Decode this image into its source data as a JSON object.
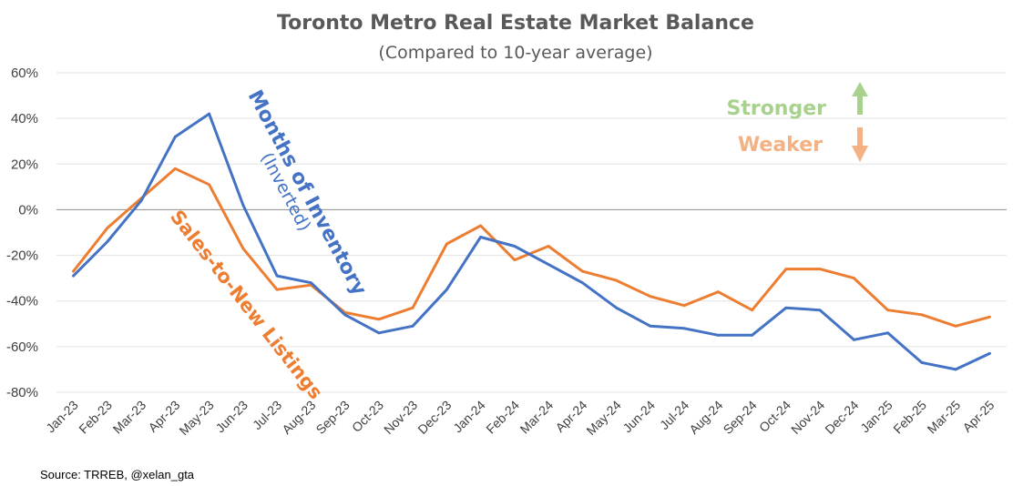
{
  "chart_data": {
    "type": "line",
    "title": "Toronto Metro Real Estate Market Balance",
    "subtitle": "(Compared to 10-year average)",
    "x": [
      "Jan-23",
      "Feb-23",
      "Mar-23",
      "Apr-23",
      "May-23",
      "Jun-23",
      "Jul-23",
      "Aug-23",
      "Sep-23",
      "Oct-23",
      "Nov-23",
      "Dec-23",
      "Jan-24",
      "Feb-24",
      "Mar-24",
      "Apr-24",
      "May-24",
      "Jun-24",
      "Jul-24",
      "Aug-24",
      "Sep-24",
      "Oct-24",
      "Nov-24",
      "Dec-24",
      "Jan-25",
      "Feb-25",
      "Mar-25",
      "Apr-25"
    ],
    "series": [
      {
        "name": "Months of Inventory",
        "name_suffix": "(Inverted)",
        "color": "#4472c4",
        "values": [
          -29,
          -14,
          4,
          32,
          42,
          2,
          -29,
          -32,
          -46,
          -54,
          -51,
          -35,
          -12,
          -16,
          -24,
          -32,
          -43,
          -51,
          -52,
          -55,
          -55,
          -43,
          -44,
          -57,
          -54,
          -67,
          -70,
          -63
        ]
      },
      {
        "name": "Sales-to-New Listings",
        "color": "#ed7d31",
        "values": [
          -27,
          -8,
          5,
          18,
          11,
          -17,
          -35,
          -33,
          -45,
          -48,
          -43,
          -15,
          -7,
          -22,
          -16,
          -27,
          -31,
          -38,
          -42,
          -36,
          -44,
          -26,
          -26,
          -30,
          -44,
          -46,
          -51,
          -47
        ]
      }
    ],
    "yticks": [
      "60%",
      "40%",
      "20%",
      "0%",
      "-20%",
      "-40%",
      "-60%",
      "-80%"
    ],
    "ylim": [
      -80,
      60
    ],
    "yformat": "percent",
    "legend_stronger": {
      "label": "Stronger",
      "color": "#a9d18e",
      "icon": "arrow-up-icon"
    },
    "legend_weaker": {
      "label": "Weaker",
      "color": "#f4b183",
      "icon": "arrow-down-icon"
    },
    "source": "Source: TRREB, @xelan_gta",
    "grid": true
  }
}
